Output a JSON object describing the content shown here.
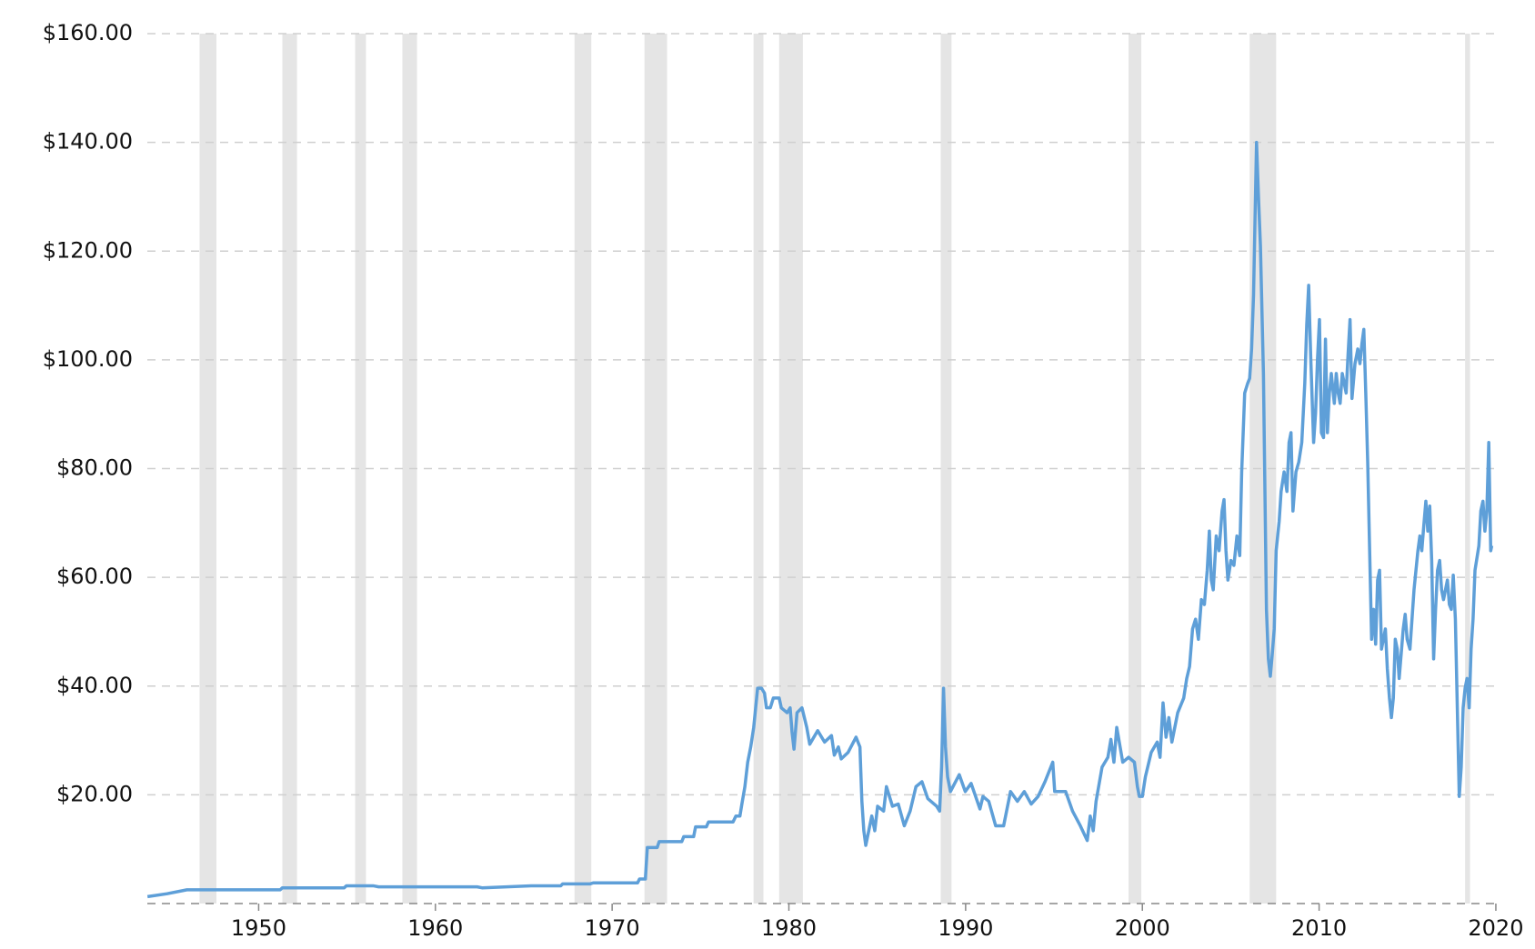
{
  "chart_data": {
    "type": "line",
    "color": "#5e9fd8",
    "recession_color": "#e5e5e5",
    "grid": true,
    "xlim": [
      1943.7,
      2019.9
    ],
    "ylim": [
      0,
      160
    ],
    "xticks": [
      1950,
      1960,
      1970,
      1980,
      1990,
      2000,
      2010,
      2020
    ],
    "yticks": [
      {
        "value": 20,
        "label": "$20.00"
      },
      {
        "value": 40,
        "label": "$40.00"
      },
      {
        "value": 60,
        "label": "$60.00"
      },
      {
        "value": 80,
        "label": "$80.00"
      },
      {
        "value": 100,
        "label": "$100.00"
      },
      {
        "value": 120,
        "label": "$120.00"
      },
      {
        "value": 140,
        "label": "$140.00"
      },
      {
        "value": 160,
        "label": "$160.00"
      }
    ],
    "recessions": [
      [
        1946.66,
        1947.61
      ],
      [
        1951.34,
        1952.17
      ],
      [
        1955.46,
        1956.07
      ],
      [
        1958.13,
        1958.96
      ],
      [
        1967.87,
        1968.82
      ],
      [
        1971.83,
        1973.11
      ],
      [
        1978.0,
        1978.56
      ],
      [
        1979.45,
        1980.79
      ],
      [
        1988.59,
        1989.2
      ],
      [
        1999.22,
        1999.94
      ],
      [
        2006.07,
        2007.57
      ],
      [
        2018.26,
        2018.54
      ]
    ],
    "x": [
      1943.71,
      1944.82,
      1945.94,
      1951.22,
      1951.34,
      1954.84,
      1954.96,
      1956.51,
      1956.79,
      1962.36,
      1962.64,
      1965.42,
      1967.09,
      1967.2,
      1968.76,
      1968.93,
      1971.44,
      1971.55,
      1971.88,
      1971.99,
      1972.55,
      1972.66,
      1973.94,
      1974.05,
      1974.61,
      1974.72,
      1975.33,
      1975.45,
      1976.84,
      1977.0,
      1977.23,
      1977.34,
      1977.51,
      1977.67,
      1977.84,
      1978.01,
      1978.23,
      1978.45,
      1978.62,
      1978.73,
      1978.95,
      1979.12,
      1979.45,
      1979.57,
      1979.9,
      1980.07,
      1980.18,
      1980.29,
      1980.46,
      1980.74,
      1981.01,
      1981.18,
      1981.63,
      1982.02,
      1982.41,
      1982.57,
      1982.8,
      1982.96,
      1983.35,
      1983.8,
      1984.02,
      1984.13,
      1984.24,
      1984.35,
      1984.52,
      1984.69,
      1984.86,
      1985.02,
      1985.36,
      1985.52,
      1985.86,
      1986.19,
      1986.53,
      1986.86,
      1987.19,
      1987.53,
      1987.86,
      1988.36,
      1988.53,
      1988.64,
      1988.75,
      1988.86,
      1988.98,
      1989.14,
      1989.64,
      1989.98,
      1990.31,
      1990.81,
      1990.98,
      1991.31,
      1991.7,
      1992.15,
      1992.54,
      1992.93,
      1993.32,
      1993.71,
      1994.1,
      1994.49,
      1994.93,
      1995.04,
      1995.66,
      1996.05,
      1996.49,
      1996.88,
      1997.05,
      1997.22,
      1997.38,
      1997.72,
      1998.05,
      1998.22,
      1998.39,
      1998.55,
      1998.89,
      1999.22,
      1999.55,
      1999.72,
      1999.83,
      2000.0,
      2000.17,
      2000.5,
      2000.84,
      2001.0,
      2001.17,
      2001.34,
      2001.5,
      2001.67,
      2002.0,
      2002.34,
      2002.51,
      2002.67,
      2002.84,
      2003.01,
      2003.17,
      2003.34,
      2003.51,
      2003.67,
      2003.79,
      2003.9,
      2004.01,
      2004.18,
      2004.34,
      2004.51,
      2004.62,
      2004.73,
      2004.84,
      2005.01,
      2005.18,
      2005.35,
      2005.51,
      2005.62,
      2005.79,
      2005.96,
      2006.07,
      2006.18,
      2006.29,
      2006.46,
      2006.57,
      2006.68,
      2006.85,
      2007.02,
      2007.13,
      2007.24,
      2007.35,
      2007.46,
      2007.57,
      2007.74,
      2007.85,
      2008.02,
      2008.18,
      2008.3,
      2008.41,
      2008.52,
      2008.69,
      2008.85,
      2009.02,
      2009.19,
      2009.3,
      2009.41,
      2009.52,
      2009.69,
      2009.8,
      2009.91,
      2010.02,
      2010.13,
      2010.25,
      2010.36,
      2010.47,
      2010.58,
      2010.69,
      2010.86,
      2010.97,
      2011.08,
      2011.19,
      2011.31,
      2011.53,
      2011.64,
      2011.75,
      2011.86,
      2012.03,
      2012.19,
      2012.31,
      2012.42,
      2012.53,
      2012.64,
      2012.75,
      2012.86,
      2012.97,
      2013.08,
      2013.2,
      2013.31,
      2013.42,
      2013.53,
      2013.75,
      2013.86,
      2013.98,
      2014.09,
      2014.2,
      2014.31,
      2014.42,
      2014.53,
      2014.76,
      2014.87,
      2014.98,
      2015.14,
      2015.37,
      2015.59,
      2015.7,
      2015.81,
      2015.92,
      2016.04,
      2016.15,
      2016.26,
      2016.37,
      2016.48,
      2016.59,
      2016.7,
      2016.82,
      2016.93,
      2017.04,
      2017.15,
      2017.26,
      2017.37,
      2017.48,
      2017.59,
      2017.71,
      2017.82,
      2017.93,
      2018.04,
      2018.15,
      2018.26,
      2018.37,
      2018.49,
      2018.6,
      2018.71,
      2018.82,
      2019.04,
      2019.15,
      2019.27,
      2019.38,
      2019.49,
      2019.6,
      2019.71,
      2019.77
    ],
    "values": [
      1.27,
      1.81,
      2.53,
      2.53,
      2.89,
      2.89,
      3.25,
      3.25,
      3.07,
      3.07,
      2.89,
      3.25,
      3.25,
      3.62,
      3.62,
      3.8,
      3.8,
      4.52,
      4.52,
      10.31,
      10.31,
      11.39,
      11.39,
      12.3,
      12.3,
      14.1,
      14.1,
      15.0,
      15.0,
      16.1,
      16.1,
      18.3,
      21.5,
      26.0,
      28.8,
      32.4,
      39.6,
      39.6,
      38.7,
      36.0,
      36.0,
      37.8,
      37.8,
      36.0,
      35.1,
      36.0,
      31.5,
      28.4,
      35.1,
      36.0,
      32.4,
      29.3,
      31.8,
      29.7,
      30.9,
      27.3,
      28.8,
      26.6,
      27.8,
      30.6,
      28.8,
      18.8,
      13.4,
      10.7,
      13.4,
      16.1,
      13.4,
      17.9,
      17.0,
      21.5,
      17.9,
      18.3,
      14.3,
      17.0,
      21.5,
      22.4,
      19.3,
      17.9,
      17.0,
      25.1,
      39.6,
      28.8,
      23.3,
      20.6,
      23.7,
      20.6,
      22.1,
      17.4,
      19.7,
      18.8,
      14.3,
      14.3,
      20.6,
      18.8,
      20.6,
      18.3,
      19.7,
      22.4,
      26.0,
      20.6,
      20.6,
      17.0,
      14.3,
      11.6,
      16.1,
      13.4,
      18.8,
      25.1,
      26.9,
      30.2,
      26.0,
      32.4,
      26.0,
      26.9,
      26.0,
      21.5,
      19.7,
      19.7,
      23.3,
      27.8,
      29.7,
      26.9,
      36.9,
      30.6,
      34.2,
      29.7,
      35.1,
      37.8,
      41.4,
      43.6,
      50.5,
      52.3,
      48.6,
      55.9,
      55.0,
      61.3,
      68.5,
      59.5,
      57.7,
      67.6,
      64.9,
      72.2,
      74.3,
      64.9,
      59.5,
      63.1,
      62.2,
      67.6,
      64.0,
      79.4,
      93.9,
      95.7,
      96.6,
      102.0,
      111.9,
      140.0,
      130.0,
      121.0,
      97.5,
      54.1,
      45.0,
      41.8,
      45.9,
      50.5,
      64.9,
      70.3,
      75.8,
      79.4,
      75.8,
      84.8,
      86.6,
      72.2,
      79.4,
      81.2,
      84.8,
      95.7,
      106.5,
      113.7,
      101.1,
      84.8,
      90.2,
      100.2,
      107.4,
      86.6,
      85.7,
      103.8,
      86.6,
      93.9,
      97.5,
      92.0,
      97.5,
      93.9,
      92.0,
      97.5,
      93.9,
      101.1,
      107.4,
      92.9,
      99.3,
      102.0,
      99.3,
      102.9,
      105.6,
      93.9,
      81.2,
      64.9,
      48.6,
      54.1,
      47.7,
      59.5,
      61.3,
      46.8,
      50.5,
      43.2,
      37.8,
      34.2,
      37.8,
      48.6,
      46.8,
      41.4,
      50.5,
      53.2,
      48.6,
      46.8,
      57.7,
      64.9,
      67.6,
      64.9,
      69.4,
      74.0,
      68.5,
      73.1,
      63.1,
      45.0,
      54.1,
      61.3,
      63.1,
      57.7,
      55.9,
      57.7,
      59.5,
      55.0,
      54.1,
      60.4,
      52.3,
      36.0,
      19.7,
      25.1,
      36.0,
      39.6,
      41.4,
      36.0,
      46.8,
      52.3,
      61.3,
      65.8,
      72.2,
      74.0,
      68.5,
      72.2,
      84.8,
      64.9,
      65.8
    ]
  }
}
